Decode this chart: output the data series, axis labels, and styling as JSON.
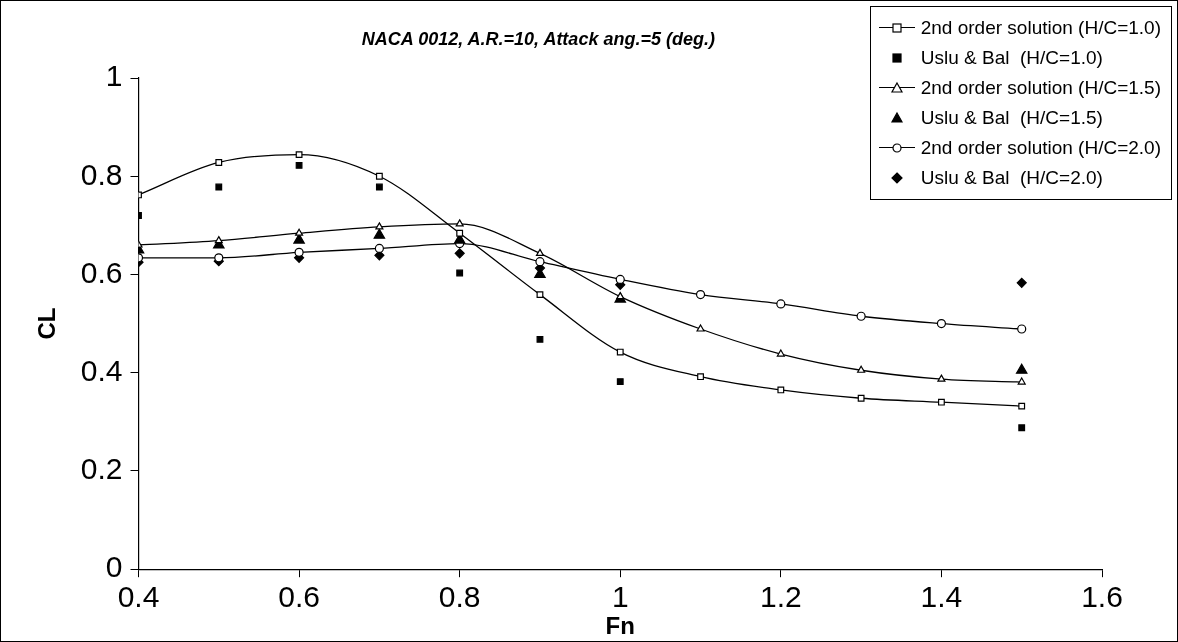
{
  "chart_data": {
    "type": "line",
    "title": "NACA 0012, A.R.=10, Attack ang.=5 (deg.)",
    "xlabel": "Fn",
    "ylabel": "CL",
    "xlim": [
      0.4,
      1.6
    ],
    "xticks": [
      0.4,
      0.6,
      0.8,
      1,
      1.2,
      1.4,
      1.6
    ],
    "ylim": [
      0,
      1
    ],
    "yticks": [
      0,
      0.2,
      0.4,
      0.6,
      0.8,
      1
    ],
    "grid": false,
    "legend": "top right",
    "line_style": "solid",
    "series": [
      {
        "name": "2nd order solution (H/C=1.0)",
        "marker": "square",
        "color": "#000000",
        "x": [
          0.4,
          0.5,
          0.6,
          0.7,
          0.8,
          0.9,
          1.0,
          1.1,
          1.2,
          1.3,
          1.4,
          1.5
        ],
        "values": [
          0.762,
          0.828,
          0.844,
          0.8,
          0.684,
          0.559,
          0.442,
          0.392,
          0.365,
          0.348,
          0.34,
          0.332
        ]
      },
      {
        "name": "Uslu & Bal  (H/C=1.0)",
        "type": "scatter",
        "marker": "square",
        "color": "#000000",
        "x": [
          0.4,
          0.5,
          0.6,
          0.7,
          0.8,
          0.9,
          1.0,
          1.5
        ],
        "values": [
          0.72,
          0.778,
          0.822,
          0.778,
          0.603,
          0.468,
          0.382,
          0.288
        ]
      },
      {
        "name": "2nd order solution (H/C=1.5)",
        "marker": "triangle",
        "color": "#000000",
        "x": [
          0.4,
          0.5,
          0.6,
          0.7,
          0.8,
          0.9,
          1.0,
          1.1,
          1.2,
          1.3,
          1.4,
          1.5
        ],
        "values": [
          0.66,
          0.669,
          0.684,
          0.697,
          0.703,
          0.643,
          0.555,
          0.489,
          0.438,
          0.405,
          0.387,
          0.381
        ]
      },
      {
        "name": "Uslu & Bal  (H/C=1.5)",
        "type": "scatter",
        "marker": "triangle",
        "color": "#000000",
        "x": [
          0.4,
          0.5,
          0.6,
          0.7,
          0.8,
          0.9,
          1.0,
          1.5
        ],
        "values": [
          0.65,
          0.66,
          0.67,
          0.68,
          0.67,
          0.6,
          0.55,
          0.405
        ]
      },
      {
        "name": "2nd order solution (H/C=2.0)",
        "marker": "circle",
        "color": "#000000",
        "x": [
          0.4,
          0.5,
          0.6,
          0.7,
          0.8,
          0.9,
          1.0,
          1.1,
          1.2,
          1.3,
          1.4,
          1.5
        ],
        "values": [
          0.634,
          0.634,
          0.645,
          0.653,
          0.663,
          0.626,
          0.59,
          0.559,
          0.54,
          0.515,
          0.5,
          0.489
        ]
      },
      {
        "name": "Uslu & Bal  (H/C=2.0)",
        "type": "scatter",
        "marker": "diamond",
        "color": "#000000",
        "x": [
          0.4,
          0.5,
          0.6,
          0.7,
          0.8,
          0.9,
          1.0,
          1.5
        ],
        "values": [
          0.625,
          0.627,
          0.634,
          0.639,
          0.643,
          0.613,
          0.579,
          0.583
        ]
      }
    ]
  }
}
